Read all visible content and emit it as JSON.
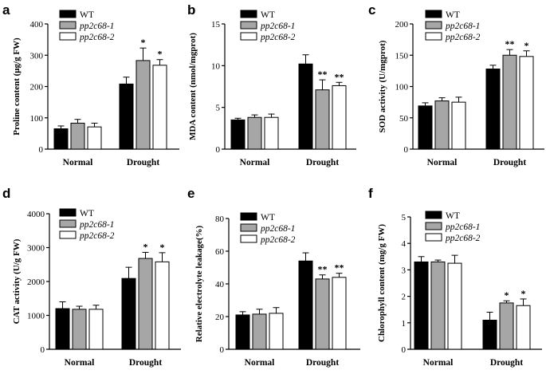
{
  "legend": [
    {
      "name": "WT",
      "italic": false,
      "fill": "#000000"
    },
    {
      "name": "pp2c68-1",
      "italic": true,
      "fill": "#a6a6a6"
    },
    {
      "name": "pp2c68-2",
      "italic": true,
      "fill": "#ffffff"
    }
  ],
  "chart_data": [
    {
      "letter": "a",
      "type": "bar",
      "ylabel": "Proline content (μg/g FW)",
      "ylim": [
        0,
        400
      ],
      "yticks": [
        0,
        100,
        200,
        300,
        400
      ],
      "categories": [
        "Normal",
        "Drought"
      ],
      "series": [
        {
          "name": "WT",
          "values": [
            65,
            208
          ],
          "errors": [
            9,
            22
          ]
        },
        {
          "name": "pp2c68-1",
          "values": [
            83,
            283
          ],
          "errors": [
            12,
            40
          ]
        },
        {
          "name": "pp2c68-2",
          "values": [
            71,
            268
          ],
          "errors": [
            12,
            18
          ]
        }
      ],
      "annotations": [
        [
          null,
          null
        ],
        [
          null,
          "*"
        ],
        [
          null,
          "*"
        ]
      ]
    },
    {
      "letter": "b",
      "type": "bar",
      "ylabel": "MDA content (nmol/mgprot)",
      "ylim": [
        0,
        15
      ],
      "yticks": [
        0,
        5,
        10,
        15
      ],
      "categories": [
        "Normal",
        "Drought"
      ],
      "series": [
        {
          "name": "WT",
          "values": [
            3.5,
            10.2
          ],
          "errors": [
            0.2,
            1.1
          ]
        },
        {
          "name": "pp2c68-1",
          "values": [
            3.8,
            7.1
          ],
          "errors": [
            0.3,
            1.2
          ]
        },
        {
          "name": "pp2c68-2",
          "values": [
            3.8,
            7.6
          ],
          "errors": [
            0.4,
            0.4
          ]
        }
      ],
      "annotations": [
        [
          null,
          null
        ],
        [
          null,
          "**"
        ],
        [
          null,
          "**"
        ]
      ]
    },
    {
      "letter": "c",
      "type": "bar",
      "ylabel": "SOD activity (U/mgprot)",
      "ylim": [
        0,
        200
      ],
      "yticks": [
        0,
        50,
        100,
        150,
        200
      ],
      "categories": [
        "Normal",
        "Drought"
      ],
      "series": [
        {
          "name": "WT",
          "values": [
            69,
            128
          ],
          "errors": [
            5,
            6
          ]
        },
        {
          "name": "pp2c68-1",
          "values": [
            77,
            150
          ],
          "errors": [
            5,
            9
          ]
        },
        {
          "name": "pp2c68-2",
          "values": [
            75,
            148
          ],
          "errors": [
            8,
            9
          ]
        }
      ],
      "annotations": [
        [
          null,
          null
        ],
        [
          null,
          "**"
        ],
        [
          null,
          "*"
        ]
      ]
    },
    {
      "letter": "d",
      "type": "bar",
      "ylabel": "CAT activity (U/g FW)",
      "ylim": [
        0,
        4000
      ],
      "yticks": [
        0,
        1000,
        2000,
        3000,
        4000
      ],
      "categories": [
        "Normal",
        "Drought"
      ],
      "series": [
        {
          "name": "WT",
          "values": [
            1200,
            2090
          ],
          "errors": [
            200,
            330
          ]
        },
        {
          "name": "pp2c68-1",
          "values": [
            1180,
            2680
          ],
          "errors": [
            90,
            180
          ]
        },
        {
          "name": "pp2c68-2",
          "values": [
            1180,
            2580
          ],
          "errors": [
            120,
            270
          ]
        }
      ],
      "annotations": [
        [
          null,
          null
        ],
        [
          null,
          "*"
        ],
        [
          null,
          "*"
        ]
      ]
    },
    {
      "letter": "e",
      "type": "bar",
      "ylabel": "Relative electrolyte leakage(%)",
      "ylim": [
        0,
        80
      ],
      "yticks": [
        0,
        20,
        40,
        60,
        80
      ],
      "categories": [
        "Normal",
        "Drought"
      ],
      "series": [
        {
          "name": "WT",
          "values": [
            21,
            54
          ],
          "errors": [
            2,
            5
          ]
        },
        {
          "name": "pp2c68-1",
          "values": [
            21.5,
            43
          ],
          "errors": [
            3,
            2.5
          ]
        },
        {
          "name": "pp2c68-2",
          "values": [
            22,
            44
          ],
          "errors": [
            3.5,
            2.5
          ]
        }
      ],
      "annotations": [
        [
          null,
          null
        ],
        [
          null,
          "**"
        ],
        [
          null,
          "**"
        ]
      ]
    },
    {
      "letter": "f",
      "type": "bar",
      "ylabel": "Chlorophyll content (mg/g FW)",
      "ylim": [
        0,
        5
      ],
      "yticks": [
        0,
        1,
        2,
        3,
        4,
        5
      ],
      "categories": [
        "Normal",
        "Drought"
      ],
      "series": [
        {
          "name": "WT",
          "values": [
            3.3,
            1.1
          ],
          "errors": [
            0.2,
            0.3
          ]
        },
        {
          "name": "pp2c68-1",
          "values": [
            3.3,
            1.75
          ],
          "errors": [
            0.07,
            0.08
          ]
        },
        {
          "name": "pp2c68-2",
          "values": [
            3.25,
            1.65
          ],
          "errors": [
            0.3,
            0.25
          ]
        }
      ],
      "annotations": [
        [
          null,
          null
        ],
        [
          null,
          "*"
        ],
        [
          null,
          "*"
        ]
      ]
    }
  ]
}
